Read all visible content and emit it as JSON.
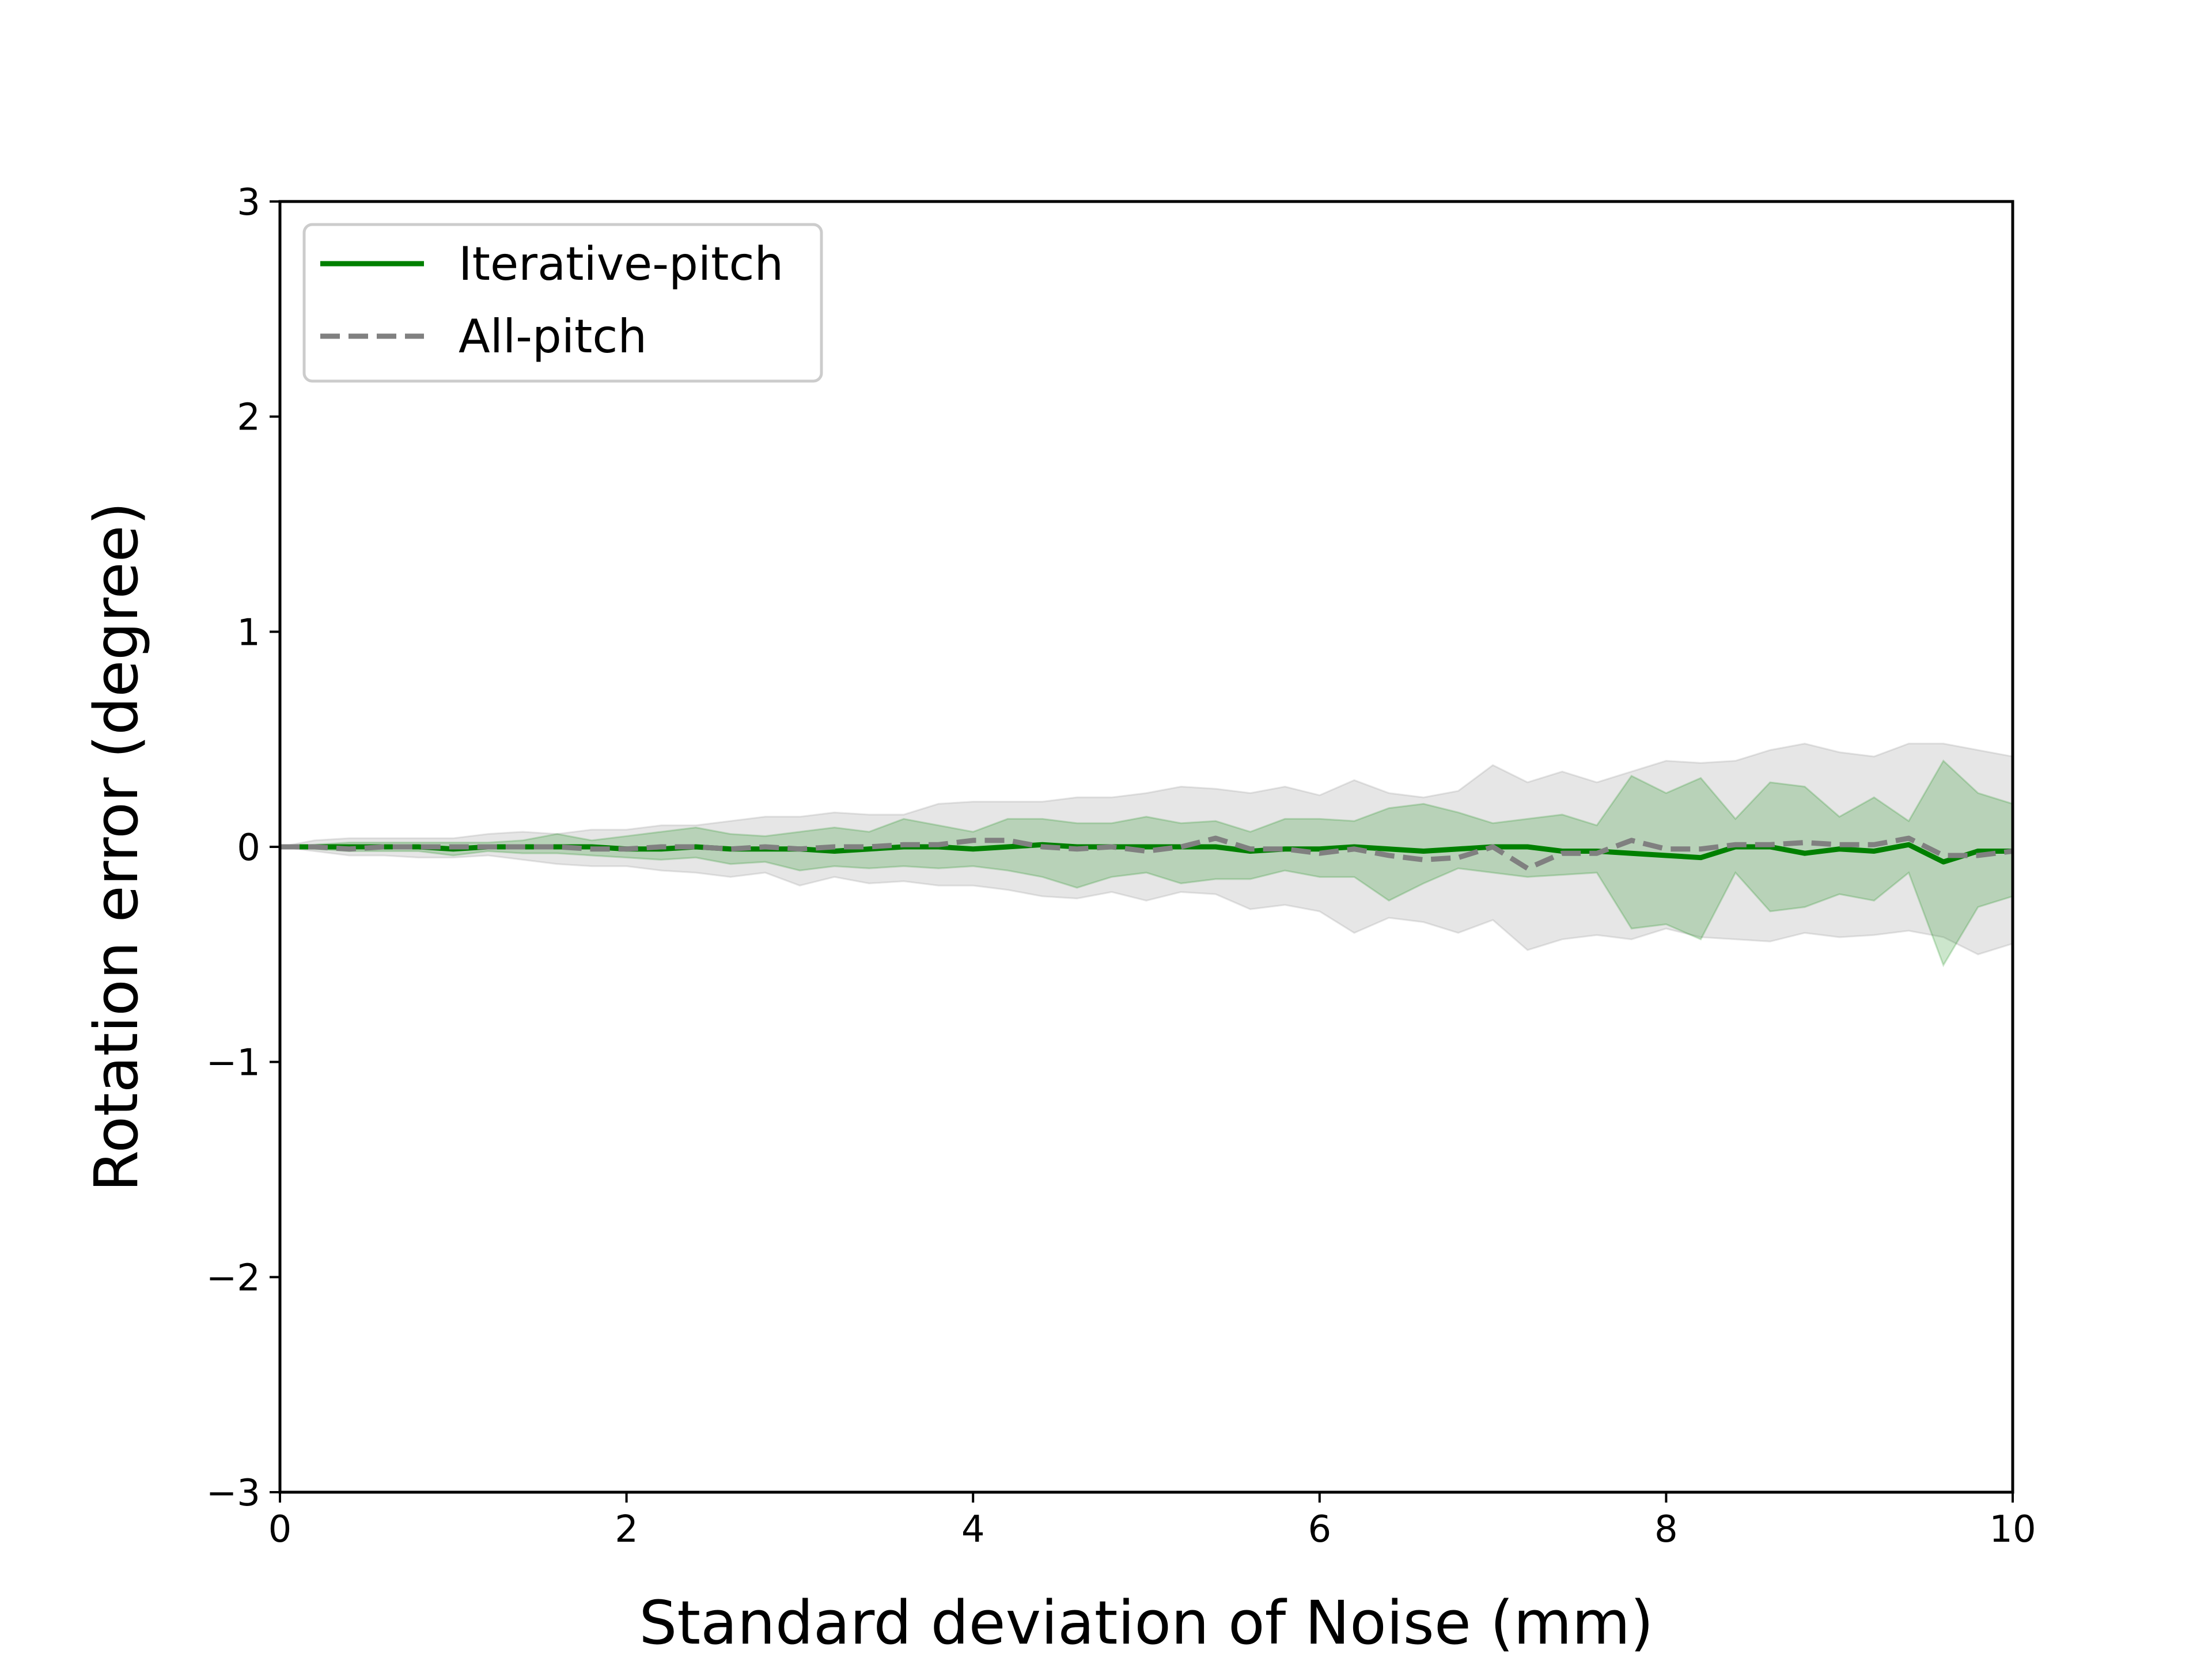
{
  "chart_data": {
    "type": "line",
    "title": "",
    "xlabel": "Standard deviation of Noise (mm)",
    "ylabel": "Rotation error (degree)",
    "xlim": [
      0,
      10
    ],
    "ylim": [
      -3,
      3
    ],
    "x_ticks": [
      0,
      2,
      4,
      6,
      8,
      10
    ],
    "y_ticks": [
      -3,
      -2,
      -1,
      0,
      1,
      2,
      3
    ],
    "x_tick_labels": [
      "0",
      "2",
      "4",
      "6",
      "8",
      "10"
    ],
    "y_tick_labels": [
      "−3",
      "−2",
      "−1",
      "0",
      "1",
      "2",
      "3"
    ],
    "grid": false,
    "legend_position": "upper-left",
    "x": [
      0,
      0.2,
      0.4,
      0.6,
      0.8,
      1.0,
      1.2,
      1.4,
      1.6,
      1.8,
      2.0,
      2.2,
      2.4,
      2.6,
      2.8,
      3.0,
      3.2,
      3.4,
      3.6,
      3.8,
      4.0,
      4.2,
      4.4,
      4.6,
      4.8,
      5.0,
      5.2,
      5.4,
      5.6,
      5.8,
      6.0,
      6.2,
      6.4,
      6.6,
      6.8,
      7.0,
      7.2,
      7.4,
      7.6,
      7.8,
      8.0,
      8.2,
      8.4,
      8.6,
      8.8,
      9.0,
      9.2,
      9.4,
      9.6,
      9.8,
      10.0
    ],
    "series": [
      {
        "name": "Iterative-pitch",
        "color": "#008000",
        "dash": "solid",
        "values": [
          0,
          0,
          0,
          0,
          0,
          -0.01,
          0,
          0,
          0,
          0,
          -0.01,
          -0.01,
          0,
          -0.01,
          -0.01,
          -0.01,
          -0.02,
          -0.01,
          0,
          0,
          -0.01,
          0,
          0.01,
          0,
          0,
          0,
          0,
          0,
          -0.02,
          -0.01,
          -0.01,
          0,
          -0.01,
          -0.02,
          -0.01,
          0,
          0,
          -0.02,
          -0.02,
          -0.03,
          -0.04,
          -0.05,
          0,
          0,
          -0.03,
          -0.01,
          -0.02,
          0.01,
          -0.07,
          -0.02,
          -0.02
        ],
        "band_upper": [
          0,
          0.01,
          0.02,
          0.02,
          0.02,
          0.02,
          0.02,
          0.03,
          0.06,
          0.03,
          0.05,
          0.07,
          0.09,
          0.06,
          0.05,
          0.07,
          0.09,
          0.07,
          0.13,
          0.1,
          0.07,
          0.13,
          0.13,
          0.11,
          0.11,
          0.14,
          0.11,
          0.12,
          0.07,
          0.13,
          0.13,
          0.12,
          0.18,
          0.2,
          0.16,
          0.11,
          0.13,
          0.15,
          0.1,
          0.33,
          0.25,
          0.32,
          0.13,
          0.3,
          0.28,
          0.14,
          0.23,
          0.12,
          0.4,
          0.25,
          0.2
        ],
        "band_lower": [
          0,
          -0.01,
          -0.02,
          -0.02,
          -0.02,
          -0.04,
          -0.02,
          -0.03,
          -0.03,
          -0.04,
          -0.05,
          -0.06,
          -0.05,
          -0.08,
          -0.07,
          -0.11,
          -0.09,
          -0.1,
          -0.09,
          -0.1,
          -0.09,
          -0.11,
          -0.14,
          -0.19,
          -0.14,
          -0.12,
          -0.17,
          -0.15,
          -0.15,
          -0.11,
          -0.14,
          -0.14,
          -0.25,
          -0.17,
          -0.1,
          -0.12,
          -0.14,
          -0.13,
          -0.12,
          -0.38,
          -0.36,
          -0.43,
          -0.12,
          -0.3,
          -0.28,
          -0.22,
          -0.25,
          -0.12,
          -0.55,
          -0.28,
          -0.23
        ]
      },
      {
        "name": "All-pitch",
        "color": "#808080",
        "dash": "dashed",
        "values": [
          0,
          0,
          -0.01,
          0,
          0,
          0,
          0,
          0,
          0,
          -0.01,
          -0.01,
          0,
          0,
          -0.01,
          0,
          -0.01,
          0,
          0,
          0.01,
          0.01,
          0.03,
          0.03,
          0,
          -0.01,
          0,
          -0.02,
          0,
          0.04,
          -0.01,
          -0.01,
          -0.03,
          -0.01,
          -0.04,
          -0.06,
          -0.05,
          0,
          -0.1,
          -0.03,
          -0.03,
          0.03,
          -0.01,
          -0.01,
          0.01,
          0.01,
          0.02,
          0.01,
          0.01,
          0.04,
          -0.04,
          -0.04,
          -0.02
        ],
        "band_upper": [
          0,
          0.03,
          0.04,
          0.04,
          0.04,
          0.04,
          0.06,
          0.07,
          0.06,
          0.08,
          0.08,
          0.1,
          0.1,
          0.12,
          0.14,
          0.14,
          0.16,
          0.15,
          0.15,
          0.2,
          0.21,
          0.21,
          0.21,
          0.23,
          0.23,
          0.25,
          0.28,
          0.27,
          0.25,
          0.28,
          0.24,
          0.31,
          0.25,
          0.23,
          0.26,
          0.38,
          0.3,
          0.35,
          0.3,
          0.35,
          0.4,
          0.39,
          0.4,
          0.45,
          0.48,
          0.44,
          0.42,
          0.48,
          0.48,
          0.45,
          0.42
        ],
        "band_lower": [
          0,
          -0.02,
          -0.04,
          -0.04,
          -0.05,
          -0.05,
          -0.04,
          -0.06,
          -0.08,
          -0.09,
          -0.09,
          -0.11,
          -0.12,
          -0.14,
          -0.12,
          -0.18,
          -0.14,
          -0.17,
          -0.16,
          -0.18,
          -0.18,
          -0.2,
          -0.23,
          -0.24,
          -0.21,
          -0.25,
          -0.21,
          -0.22,
          -0.29,
          -0.27,
          -0.3,
          -0.4,
          -0.33,
          -0.35,
          -0.4,
          -0.34,
          -0.48,
          -0.43,
          -0.41,
          -0.43,
          -0.38,
          -0.42,
          -0.43,
          -0.44,
          -0.4,
          -0.42,
          -0.41,
          -0.39,
          -0.42,
          -0.5,
          -0.45
        ]
      }
    ]
  }
}
